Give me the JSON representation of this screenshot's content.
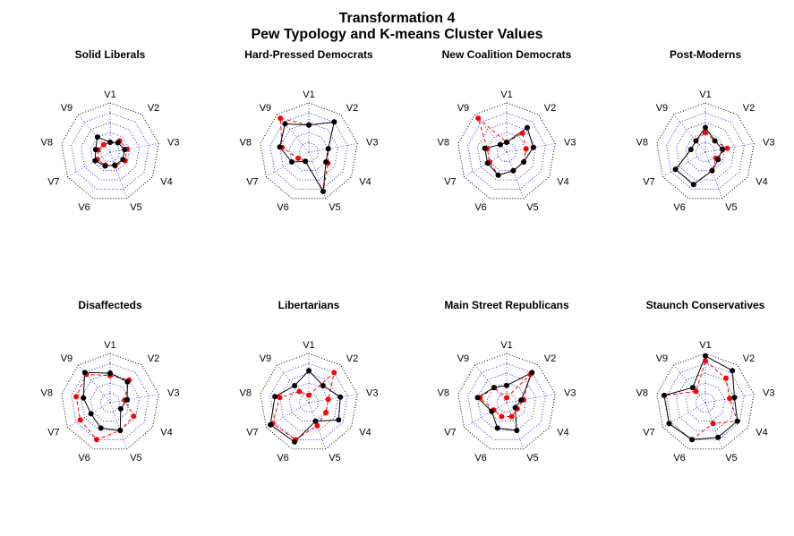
{
  "title_line1": "Transformation 4",
  "title_line2": "Pew Typology and K-means Cluster Values",
  "chart_data": {
    "type": "radar",
    "axis_labels": [
      "V1",
      "V2",
      "V3",
      "V4",
      "V5",
      "V6",
      "V7",
      "V8",
      "V9"
    ],
    "rlim": [
      0,
      1
    ],
    "grid": true,
    "colors": {
      "series_a": "#000000",
      "series_b": "#ff0000",
      "grid": "#0000cc",
      "frame": "#000000"
    },
    "panels": [
      {
        "title": "Solid Liberals",
        "series": [
          {
            "values": [
              0.2,
              0.25,
              0.3,
              0.3,
              0.28,
              0.3,
              0.35,
              0.3,
              0.4
            ]
          },
          {
            "values": [
              0.2,
              0.3,
              0.35,
              0.35,
              0.3,
              0.28,
              0.3,
              0.25,
              0.2
            ]
          }
        ]
      },
      {
        "title": "Hard-Pressed Democrats",
        "series": [
          {
            "values": [
              0.55,
              0.8,
              0.4,
              0.4,
              0.85,
              0.2,
              0.4,
              0.6,
              0.75
            ]
          },
          {
            "values": [
              0.55,
              0.8,
              0.4,
              0.45,
              0.85,
              0.2,
              0.25,
              0.55,
              0.9
            ]
          }
        ]
      },
      {
        "title": "New Coalition Democrats",
        "series": [
          {
            "values": [
              0.2,
              0.65,
              0.55,
              0.4,
              0.4,
              0.5,
              0.45,
              0.45,
              0.2
            ]
          },
          {
            "values": [
              0.2,
              0.5,
              0.4,
              0.4,
              0.4,
              0.5,
              0.4,
              0.4,
              0.9
            ]
          }
        ]
      },
      {
        "title": "Post-Moderns",
        "series": [
          {
            "values": [
              0.5,
              0.3,
              0.35,
              0.3,
              0.4,
              0.7,
              0.7,
              0.3,
              0.3
            ]
          },
          {
            "values": [
              0.4,
              0.3,
              0.45,
              0.25,
              0.4,
              0.7,
              0.7,
              0.3,
              0.3
            ]
          }
        ]
      },
      {
        "title": "Disaffecteds",
        "series": [
          {
            "values": [
              0.6,
              0.55,
              0.35,
              0.25,
              0.6,
              0.55,
              0.45,
              0.55,
              0.8
            ]
          },
          {
            "values": [
              0.55,
              0.6,
              0.3,
              0.55,
              0.6,
              0.8,
              0.7,
              0.7,
              0.75
            ]
          }
        ]
      },
      {
        "title": "Libertarians",
        "series": [
          {
            "values": [
              0.65,
              0.45,
              0.65,
              0.7,
              0.4,
              0.85,
              0.9,
              0.7,
              0.45
            ]
          },
          {
            "values": [
              0.15,
              0.8,
              0.4,
              0.4,
              0.5,
              0.8,
              0.85,
              0.6,
              0.3
            ]
          }
        ]
      },
      {
        "title": "Main Street Republicans",
        "series": [
          {
            "values": [
              0.35,
              0.8,
              0.3,
              0.2,
              0.6,
              0.55,
              0.35,
              0.6,
              0.4
            ]
          },
          {
            "values": [
              0.1,
              0.75,
              0.35,
              0.25,
              0.3,
              0.3,
              0.3,
              0.55,
              0.4
            ]
          }
        ]
      },
      {
        "title": "Staunch Conservatives",
        "series": [
          {
            "values": [
              0.95,
              0.85,
              0.6,
              0.75,
              0.75,
              0.8,
              0.85,
              0.85,
              0.4
            ]
          },
          {
            "values": [
              0.85,
              0.65,
              0.5,
              0.75,
              0.45,
              0.8,
              0.85,
              0.85,
              0.3
            ]
          }
        ]
      }
    ]
  }
}
